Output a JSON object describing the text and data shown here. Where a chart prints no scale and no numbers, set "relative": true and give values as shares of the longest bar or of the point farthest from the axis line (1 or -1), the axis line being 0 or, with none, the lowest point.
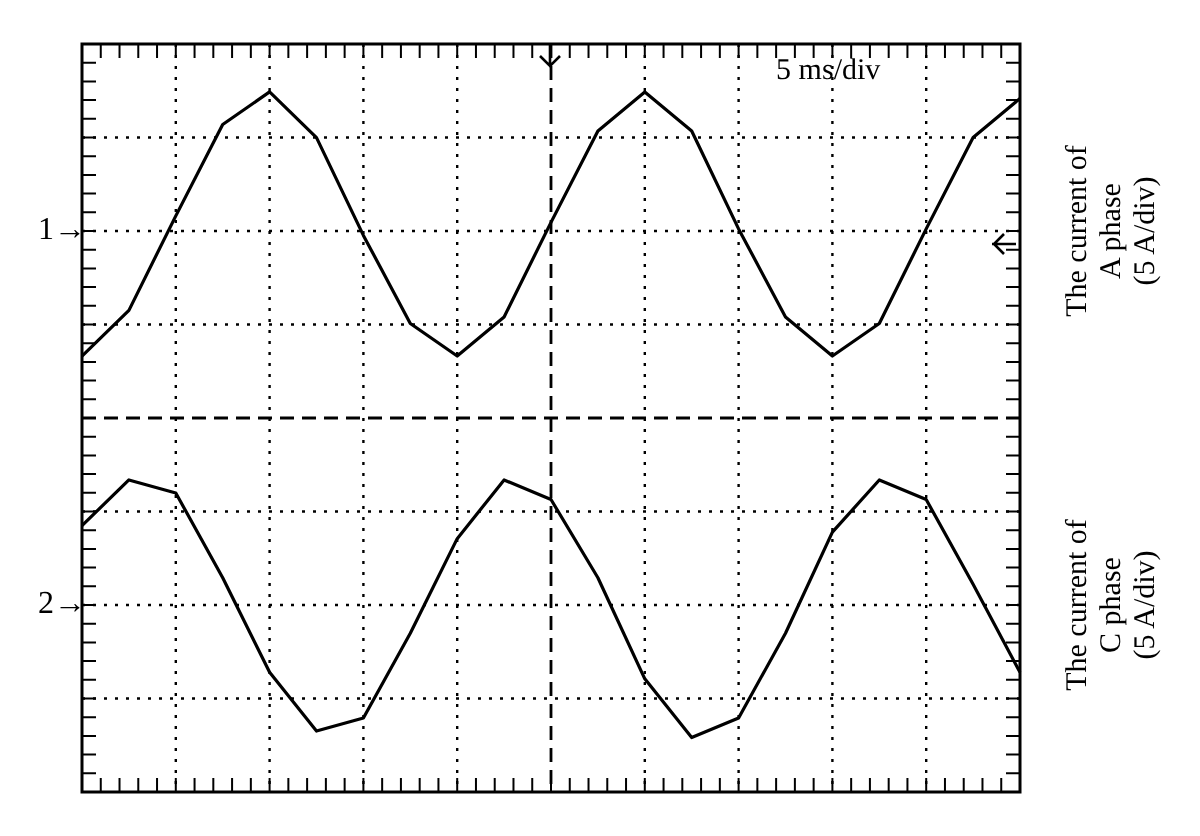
{
  "chart_data": {
    "type": "line",
    "relative": true,
    "grid": true,
    "line_style": "solid",
    "legend": "right",
    "ref_lines": [
      {
        "axis": "y",
        "value": 0,
        "line_style": "dashed"
      }
    ],
    "categories": [
      null,
      null,
      null,
      null,
      null,
      null,
      null,
      null,
      null,
      null,
      null,
      null,
      null,
      null,
      null,
      null,
      null,
      null,
      null,
      null,
      null
    ],
    "series": [
      {
        "name": "The current of A phase (5 A/div)",
        "color": "#000000",
        "values": [
          0.19,
          0.33,
          0.62,
          0.9,
          1.0,
          0.86,
          0.56,
          0.29,
          0.19,
          0.31,
          0.6,
          0.88,
          1.0,
          0.88,
          0.58,
          0.31,
          0.19,
          0.29,
          0.58,
          0.86,
          0.98
        ]
      },
      {
        "name": "The current of C phase (5 A/div)",
        "color": "#000000",
        "values": [
          -0.33,
          -0.19,
          -0.23,
          -0.49,
          -0.78,
          -0.96,
          -0.92,
          -0.66,
          -0.37,
          -0.19,
          -0.25,
          -0.49,
          -0.8,
          -0.98,
          -0.92,
          -0.66,
          -0.35,
          -0.19,
          -0.25,
          -0.51,
          -0.78
        ]
      }
    ],
    "annotations": [
      "5 ms/div",
      "1→",
      "2→"
    ]
  }
}
